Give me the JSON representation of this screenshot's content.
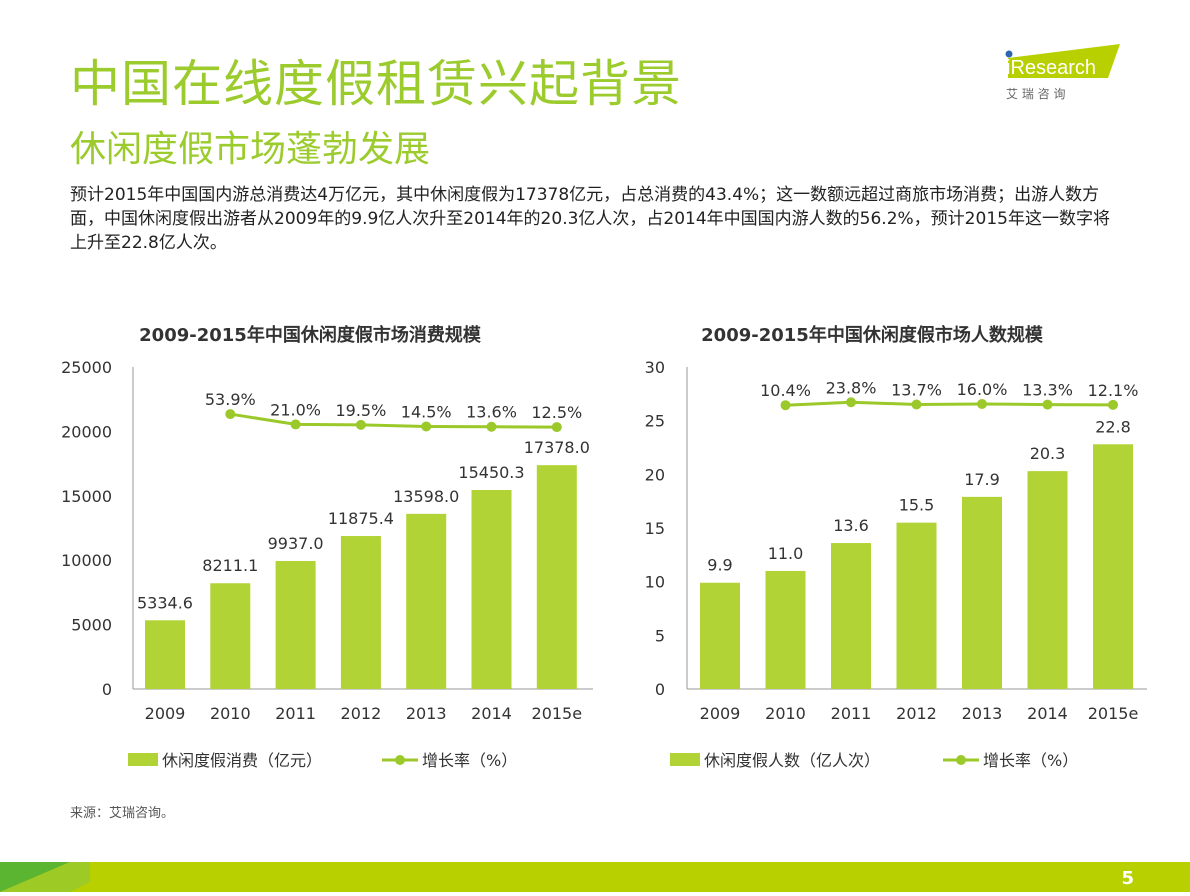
{
  "title": "中国在线度假租赁兴起背景",
  "subtitle": "休闲度假市场蓬勃发展",
  "description": "预计2015年中国国内游总消费达4万亿元，其中休闲度假为17378亿元，占总消费的43.4%；这一数额远超过商旅市场消费；出游人数方面，中国休闲度假出游者从2009年的9.9亿人次升至2014年的20.3亿人次，占2014年中国国内游人数的56.2%，预计2015年这一数字将上升至22.8亿人次。",
  "logo": {
    "text": "iResearch",
    "sub": "艾 瑞 咨 询"
  },
  "source": "来源：艾瑞咨询。",
  "page_number": "5",
  "colors": {
    "accent": "#9bcb2c",
    "bar": "#b1d335",
    "line": "#9bc92a",
    "footer": "#b8d000"
  },
  "chart_data": [
    {
      "type": "bar+line",
      "title": "2009-2015年中国休闲度假市场消费规模",
      "categories": [
        "2009",
        "2010",
        "2011",
        "2012",
        "2013",
        "2014",
        "2015e"
      ],
      "ylim": [
        0,
        25000
      ],
      "yticks": [
        "0",
        "5000",
        "10000",
        "15000",
        "20000",
        "25000"
      ],
      "series": [
        {
          "name": "休闲度假消费（亿元）",
          "type": "bar",
          "values": [
            5334.6,
            8211.1,
            9937.0,
            11875.4,
            13598.0,
            15450.3,
            17378.0
          ],
          "labels": [
            "5334.6",
            "8211.1",
            "9937.0",
            "11875.4",
            "13598.0",
            "15450.3",
            "17378.0"
          ]
        },
        {
          "name": "增长率（%）",
          "type": "line",
          "values": [
            null,
            53.9,
            21.0,
            19.5,
            14.5,
            13.6,
            12.5
          ],
          "labels": [
            "",
            "53.9%",
            "21.0%",
            "19.5%",
            "14.5%",
            "13.6%",
            "12.5%"
          ]
        }
      ],
      "legend": "bottom"
    },
    {
      "type": "bar+line",
      "title": "2009-2015年中国休闲度假市场人数规模",
      "categories": [
        "2009",
        "2010",
        "2011",
        "2012",
        "2013",
        "2014",
        "2015e"
      ],
      "ylim": [
        0,
        30
      ],
      "yticks": [
        "0",
        "5",
        "10",
        "15",
        "20",
        "25",
        "30"
      ],
      "series": [
        {
          "name": "休闲度假人数（亿人次）",
          "type": "bar",
          "values": [
            9.9,
            11.0,
            13.6,
            15.5,
            17.9,
            20.3,
            22.8
          ],
          "labels": [
            "9.9",
            "11.0",
            "13.6",
            "15.5",
            "17.9",
            "20.3",
            "22.8"
          ]
        },
        {
          "name": "增长率（%）",
          "type": "line",
          "values": [
            null,
            10.4,
            23.8,
            13.7,
            16.0,
            13.3,
            12.1
          ],
          "labels": [
            "",
            "10.4%",
            "23.8%",
            "13.7%",
            "16.0%",
            "13.3%",
            "12.1%"
          ]
        }
      ],
      "legend": "bottom"
    }
  ]
}
